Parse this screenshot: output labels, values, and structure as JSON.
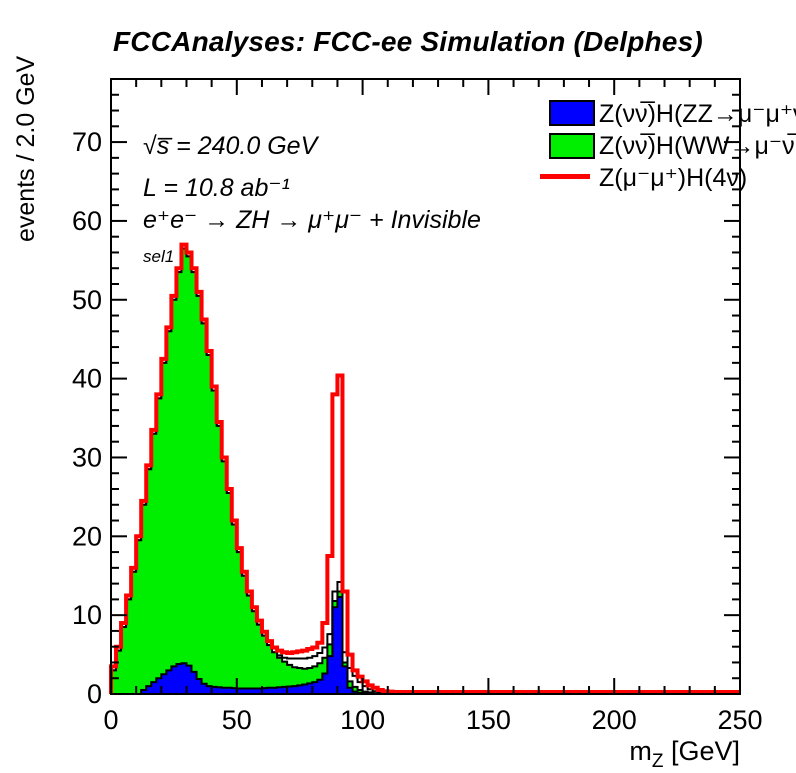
{
  "title": "FCCAnalyses: FCC-ee Simulation (Delphes)",
  "annotations": {
    "energy": "√s̅ = 240.0 GeV",
    "luminosity": "L = 10.8 ab⁻¹",
    "process": "e⁺e⁻ → ZH → μ⁺μ⁻ + Invisible",
    "selection": "sel1"
  },
  "axes": {
    "y_title": "events / 2.0 GeV",
    "x_title_main": "m",
    "x_title_sub": "Z",
    "x_title_unit": " [GeV]"
  },
  "legend": {
    "entries": [
      {
        "label": "Z(νν̅)H(ZZ→μ⁻μ⁺νν̅)",
        "swatch": "box",
        "color": "#0000ff"
      },
      {
        "label": "Z(νν̅)H(WW→μ⁻ν̅μ⁺ν)",
        "swatch": "box",
        "color": "#00ee00"
      },
      {
        "label": "Z(μ⁻μ⁺)H(4ν)",
        "swatch": "line",
        "color": "#ff0000"
      }
    ]
  },
  "chart_data": {
    "type": "bar",
    "subtype": "step-histogram-overlay",
    "title": "FCCAnalyses: FCC-ee Simulation (Delphes)",
    "xlabel": "m_Z [GeV]",
    "ylabel": "events / 2.0 GeV",
    "bin_width": 2,
    "x_start": 0,
    "xlim": [
      0,
      250
    ],
    "ylim": [
      0,
      78
    ],
    "x_major_ticks": [
      0,
      50,
      100,
      150,
      200,
      250
    ],
    "x_minor_step": 10,
    "y_major_ticks": [
      0,
      10,
      20,
      30,
      40,
      50,
      60,
      70
    ],
    "y_minor_step": 2,
    "grid": false,
    "legend_position": "top-right",
    "series": [
      {
        "name": "background-total-outline",
        "render": "filled",
        "fill": "#ffffff",
        "stroke": "#000000",
        "stroke_width": 2,
        "pad_value": 0,
        "values": [
          3,
          5.5,
          8.5,
          12,
          15.5,
          19.5,
          24,
          28.5,
          33,
          37.5,
          42,
          46,
          50,
          53.5,
          56.5,
          55.5,
          53.5,
          50.5,
          47,
          43,
          38.5,
          34,
          29.5,
          25.5,
          21.5,
          18,
          15,
          12.5,
          10.5,
          8.8,
          7.4,
          6.2,
          5.3,
          4.9,
          4.6,
          4.5,
          4.5,
          4.5,
          4.5,
          4.6,
          4.8,
          5.2,
          5.9,
          7.6,
          13,
          14.2,
          5.3,
          3.3,
          2.3,
          1.5,
          1,
          0.6,
          0.35,
          0.25,
          0.15,
          0.1
        ]
      },
      {
        "name": "zvvh-ww-background",
        "legend_label": "Z(νν̅)H(WW→μ⁻ν̅μ⁺ν)",
        "render": "filled",
        "fill": "#00ee00",
        "stroke": "#000000",
        "stroke_width": 2,
        "pad_value": 0,
        "values": [
          3,
          5.5,
          8.5,
          12,
          15.5,
          19.5,
          24,
          28.5,
          33,
          37.5,
          42,
          46,
          50,
          53.5,
          56.5,
          55.5,
          53.5,
          50.5,
          47,
          43,
          38.5,
          34,
          29.5,
          25.5,
          21.5,
          18,
          15,
          12.5,
          10.5,
          8.8,
          7.4,
          6.2,
          5.3,
          4.6,
          4.1,
          3.7,
          3.4,
          3.3,
          3.2,
          3.3,
          3.5,
          3.9,
          4.6,
          6.3,
          11.8,
          13,
          4,
          1.6,
          0.9,
          0.5,
          0.3,
          0.2,
          0.1,
          0.1,
          0.05,
          0
        ]
      },
      {
        "name": "zvvh-zz-background",
        "legend_label": "Z(νν̅)H(ZZ→μ⁻μ⁺νν̅)",
        "render": "filled",
        "fill": "#0000ff",
        "stroke": "#000000",
        "stroke_width": 2,
        "pad_value": 0,
        "values": [
          0,
          0,
          0,
          0,
          0,
          0,
          0.5,
          1,
          1.5,
          2,
          2.5,
          3,
          3.5,
          3.8,
          3.9,
          3.6,
          2.8,
          1.9,
          1.3,
          1,
          0.9,
          0.85,
          0.8,
          0.8,
          0.75,
          0.7,
          0.7,
          0.7,
          0.7,
          0.7,
          0.75,
          0.8,
          0.8,
          0.85,
          0.9,
          0.95,
          1,
          1.1,
          1.2,
          1.35,
          1.5,
          1.8,
          2.6,
          4.8,
          11,
          12.3,
          3.5,
          0.8,
          0.3,
          0.15,
          0.1,
          0,
          0,
          0,
          0,
          0
        ]
      },
      {
        "name": "zmumu-h4nu-signal",
        "legend_label": "Z(μ⁻μ⁺)H(4ν)",
        "render": "line",
        "stroke": "#ff0000",
        "stroke_width": 4,
        "pad_value": 0.25,
        "values": [
          3.5,
          6,
          9,
          12.5,
          16,
          20,
          24.5,
          29,
          33.5,
          38,
          42.5,
          46.5,
          50.5,
          54,
          57,
          56,
          54,
          51,
          47.5,
          43.5,
          39,
          34.5,
          30,
          26,
          22,
          18.5,
          15.5,
          13,
          11,
          9.3,
          7.9,
          6.7,
          5.9,
          5.5,
          5.3,
          5.2,
          5.3,
          5.4,
          5.5,
          5.7,
          5.9,
          6.5,
          9,
          17.5,
          38,
          40.4,
          13,
          5,
          3,
          2.2,
          1.6,
          1.1,
          0.8,
          0.5,
          0.35,
          0.3
        ]
      }
    ]
  }
}
